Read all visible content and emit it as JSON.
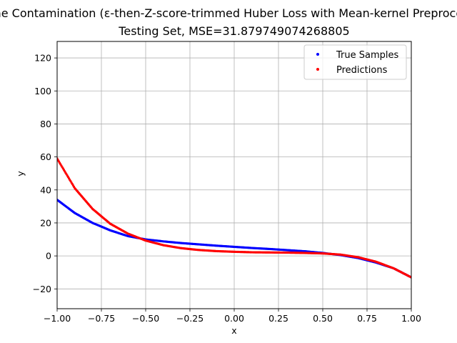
{
  "chart_data": {
    "type": "scatter",
    "title": "Extreme Contamination (ε-then-Z-score-trimmed Huber Loss with Mean-kernel Preprocessing)",
    "subtitle": "Testing Set, MSE=31.879749074268805",
    "xlabel": "x",
    "ylabel": "y",
    "xlim": [
      -1.0,
      1.0
    ],
    "ylim": [
      -32,
      130
    ],
    "xticks": [
      "−1.00",
      "−0.75",
      "−0.50",
      "−0.25",
      "0.00",
      "0.25",
      "0.50",
      "0.75",
      "1.00"
    ],
    "yticks": [
      "−20",
      "0",
      "20",
      "40",
      "60",
      "80",
      "100",
      "120"
    ],
    "grid": true,
    "legend_position": "top-right",
    "series": [
      {
        "name": "True Samples",
        "color": "#0000ff",
        "x": [
          -1.0,
          -0.9,
          -0.8,
          -0.7,
          -0.6,
          -0.5,
          -0.4,
          -0.3,
          -0.2,
          -0.1,
          0.0,
          0.1,
          0.2,
          0.3,
          0.4,
          0.5,
          0.6,
          0.7,
          0.8,
          0.9,
          1.0
        ],
        "y": [
          34.0,
          26.0,
          20.0,
          15.5,
          12.0,
          10.0,
          8.8,
          7.8,
          7.0,
          6.2,
          5.5,
          4.8,
          4.2,
          3.5,
          2.8,
          1.8,
          0.5,
          -1.3,
          -4.0,
          -7.5,
          -13.0
        ]
      },
      {
        "name": "Predictions",
        "color": "#ff0000",
        "x": [
          -1.0,
          -0.9,
          -0.8,
          -0.7,
          -0.6,
          -0.5,
          -0.4,
          -0.3,
          -0.2,
          -0.1,
          0.0,
          0.1,
          0.2,
          0.3,
          0.4,
          0.5,
          0.6,
          0.7,
          0.8,
          0.9,
          1.0
        ],
        "y": [
          59.0,
          41.0,
          28.5,
          19.5,
          13.5,
          9.3,
          6.5,
          4.7,
          3.6,
          2.9,
          2.5,
          2.2,
          2.1,
          2.0,
          1.8,
          1.5,
          0.8,
          -0.8,
          -3.5,
          -7.5,
          -13.0
        ]
      }
    ]
  }
}
